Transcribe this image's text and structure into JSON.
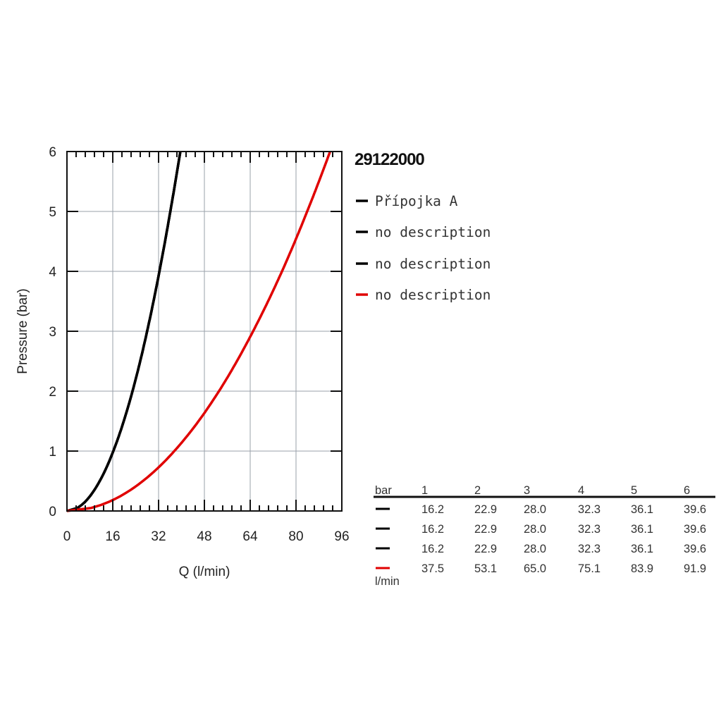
{
  "chart_data": {
    "type": "line",
    "title": "29122000",
    "xlabel": "Q (l/min)",
    "ylabel": "Pressure (bar)",
    "xlim": [
      0,
      96
    ],
    "ylim": [
      0,
      6
    ],
    "xticks": [
      "0",
      "16",
      "32",
      "48",
      "64",
      "80",
      "96"
    ],
    "yticks": [
      "0",
      "1",
      "2",
      "3",
      "4",
      "5",
      "6"
    ],
    "grid": true,
    "legend_placement": "right",
    "series": [
      {
        "name": "Přípojka A",
        "color": "#000000",
        "pressure": [
          1,
          2,
          3,
          4,
          5,
          6
        ],
        "flow": [
          16.2,
          22.9,
          28.0,
          32.3,
          36.1,
          39.6
        ]
      },
      {
        "name": "no description",
        "color": "#000000",
        "pressure": [
          1,
          2,
          3,
          4,
          5,
          6
        ],
        "flow": [
          16.2,
          22.9,
          28.0,
          32.3,
          36.1,
          39.6
        ]
      },
      {
        "name": "no description",
        "color": "#000000",
        "pressure": [
          1,
          2,
          3,
          4,
          5,
          6
        ],
        "flow": [
          16.2,
          22.9,
          28.0,
          32.3,
          36.1,
          39.6
        ]
      },
      {
        "name": "no description",
        "color": "#e00000",
        "pressure": [
          1,
          2,
          3,
          4,
          5,
          6
        ],
        "flow": [
          37.5,
          53.1,
          65.0,
          75.1,
          83.9,
          91.9
        ]
      }
    ],
    "table": {
      "header_label": "bar",
      "unit_label": "l/min",
      "columns": [
        "1",
        "2",
        "3",
        "4",
        "5",
        "6"
      ],
      "rows": [
        [
          "16.2",
          "22.9",
          "28.0",
          "32.3",
          "36.1",
          "39.6"
        ],
        [
          "16.2",
          "22.9",
          "28.0",
          "32.3",
          "36.1",
          "39.6"
        ],
        [
          "16.2",
          "22.9",
          "28.0",
          "32.3",
          "36.1",
          "39.6"
        ],
        [
          "37.5",
          "53.1",
          "65.0",
          "75.1",
          "83.9",
          "91.9"
        ]
      ]
    }
  }
}
